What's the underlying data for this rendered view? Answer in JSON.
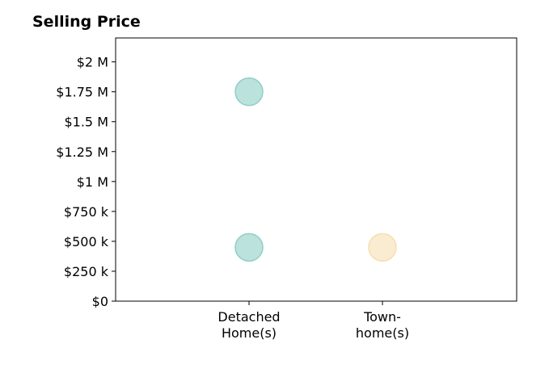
{
  "chart_data": {
    "type": "scatter",
    "title": "Selling Price",
    "xlabel": "",
    "ylabel": "",
    "categories": [
      [
        "Detached",
        "Home(s)"
      ],
      [
        "Town-",
        "home(s)"
      ]
    ],
    "y_ticks": [
      "$0",
      "$250 k",
      "$500 k",
      "$750 k",
      "$1 M",
      "$1.25 M",
      "$1.5 M",
      "$1.75 M",
      "$2 M"
    ],
    "y_tick_values": [
      0,
      250000,
      500000,
      750000,
      1000000,
      1250000,
      1500000,
      1750000,
      2000000
    ],
    "ylim": [
      0,
      2200000
    ],
    "grid": false,
    "legend": "none",
    "points": [
      {
        "category": 0,
        "value": 450000,
        "color": "#8fcfc7"
      },
      {
        "category": 0,
        "value": 1750000,
        "color": "#8fcfc7"
      },
      {
        "category": 1,
        "value": 450000,
        "color": "#f5dfb0"
      }
    ]
  }
}
